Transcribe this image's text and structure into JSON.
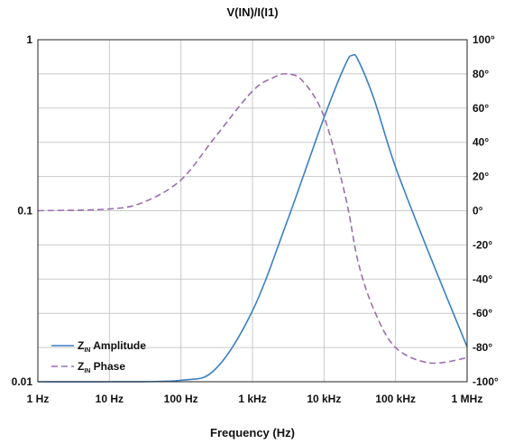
{
  "chart_data": {
    "type": "line",
    "title": "V(IN)/I(I1)",
    "xlabel": "Frequency (Hz)",
    "x_scale": "log",
    "xlim": [
      1,
      1000000
    ],
    "x_ticks": [
      1,
      10,
      100,
      1000,
      10000,
      100000,
      1000000
    ],
    "x_tick_labels": [
      "1 Hz",
      "10 Hz",
      "100 Hz",
      "1 kHz",
      "10 kHz",
      "100 kHz",
      "1 MHz"
    ],
    "y_left": {
      "scale": "log",
      "lim": [
        0.01,
        1
      ],
      "ticks": [
        0.01,
        0.1,
        1
      ],
      "tick_labels": [
        "0.01",
        "0.1",
        "1"
      ]
    },
    "y_right": {
      "scale": "linear",
      "lim": [
        -100,
        100
      ],
      "ticks": [
        -100,
        -80,
        -60,
        -40,
        -20,
        0,
        20,
        40,
        60,
        80,
        100
      ],
      "tick_labels": [
        "-100°",
        "-80°",
        "-60°",
        "-40°",
        "-20°",
        "0°",
        "20°",
        "40°",
        "60°",
        "80°",
        "100°"
      ]
    },
    "grid": true,
    "legend_position": "bottom-left",
    "series": [
      {
        "name": "Z_IN Amplitude",
        "legend_main": "Z",
        "legend_sub": "IN",
        "legend_rest": " Amplitude",
        "axis": "left",
        "color": "#3a7fc4",
        "style": "solid",
        "x": [
          1,
          10,
          100,
          300,
          1000,
          3000,
          10000,
          20000,
          25000,
          30000,
          50000,
          100000,
          300000,
          1000000
        ],
        "y": [
          0.01,
          0.01,
          0.0102,
          0.0118,
          0.026,
          0.085,
          0.35,
          0.72,
          0.81,
          0.76,
          0.45,
          0.18,
          0.055,
          0.016
        ]
      },
      {
        "name": "Z_IN Phase",
        "legend_main": "Z",
        "legend_sub": "IN",
        "legend_rest": " Phase",
        "axis": "right",
        "color": "#9b6fb0",
        "style": "dashed",
        "x": [
          1,
          10,
          30,
          100,
          300,
          1000,
          2000,
          3000,
          5000,
          10000,
          20000,
          30000,
          50000,
          100000,
          300000,
          1000000
        ],
        "y": [
          0,
          1,
          5,
          18,
          43,
          70,
          78,
          80,
          76,
          55,
          8,
          -30,
          -58,
          -80,
          -89,
          -86
        ]
      }
    ]
  }
}
